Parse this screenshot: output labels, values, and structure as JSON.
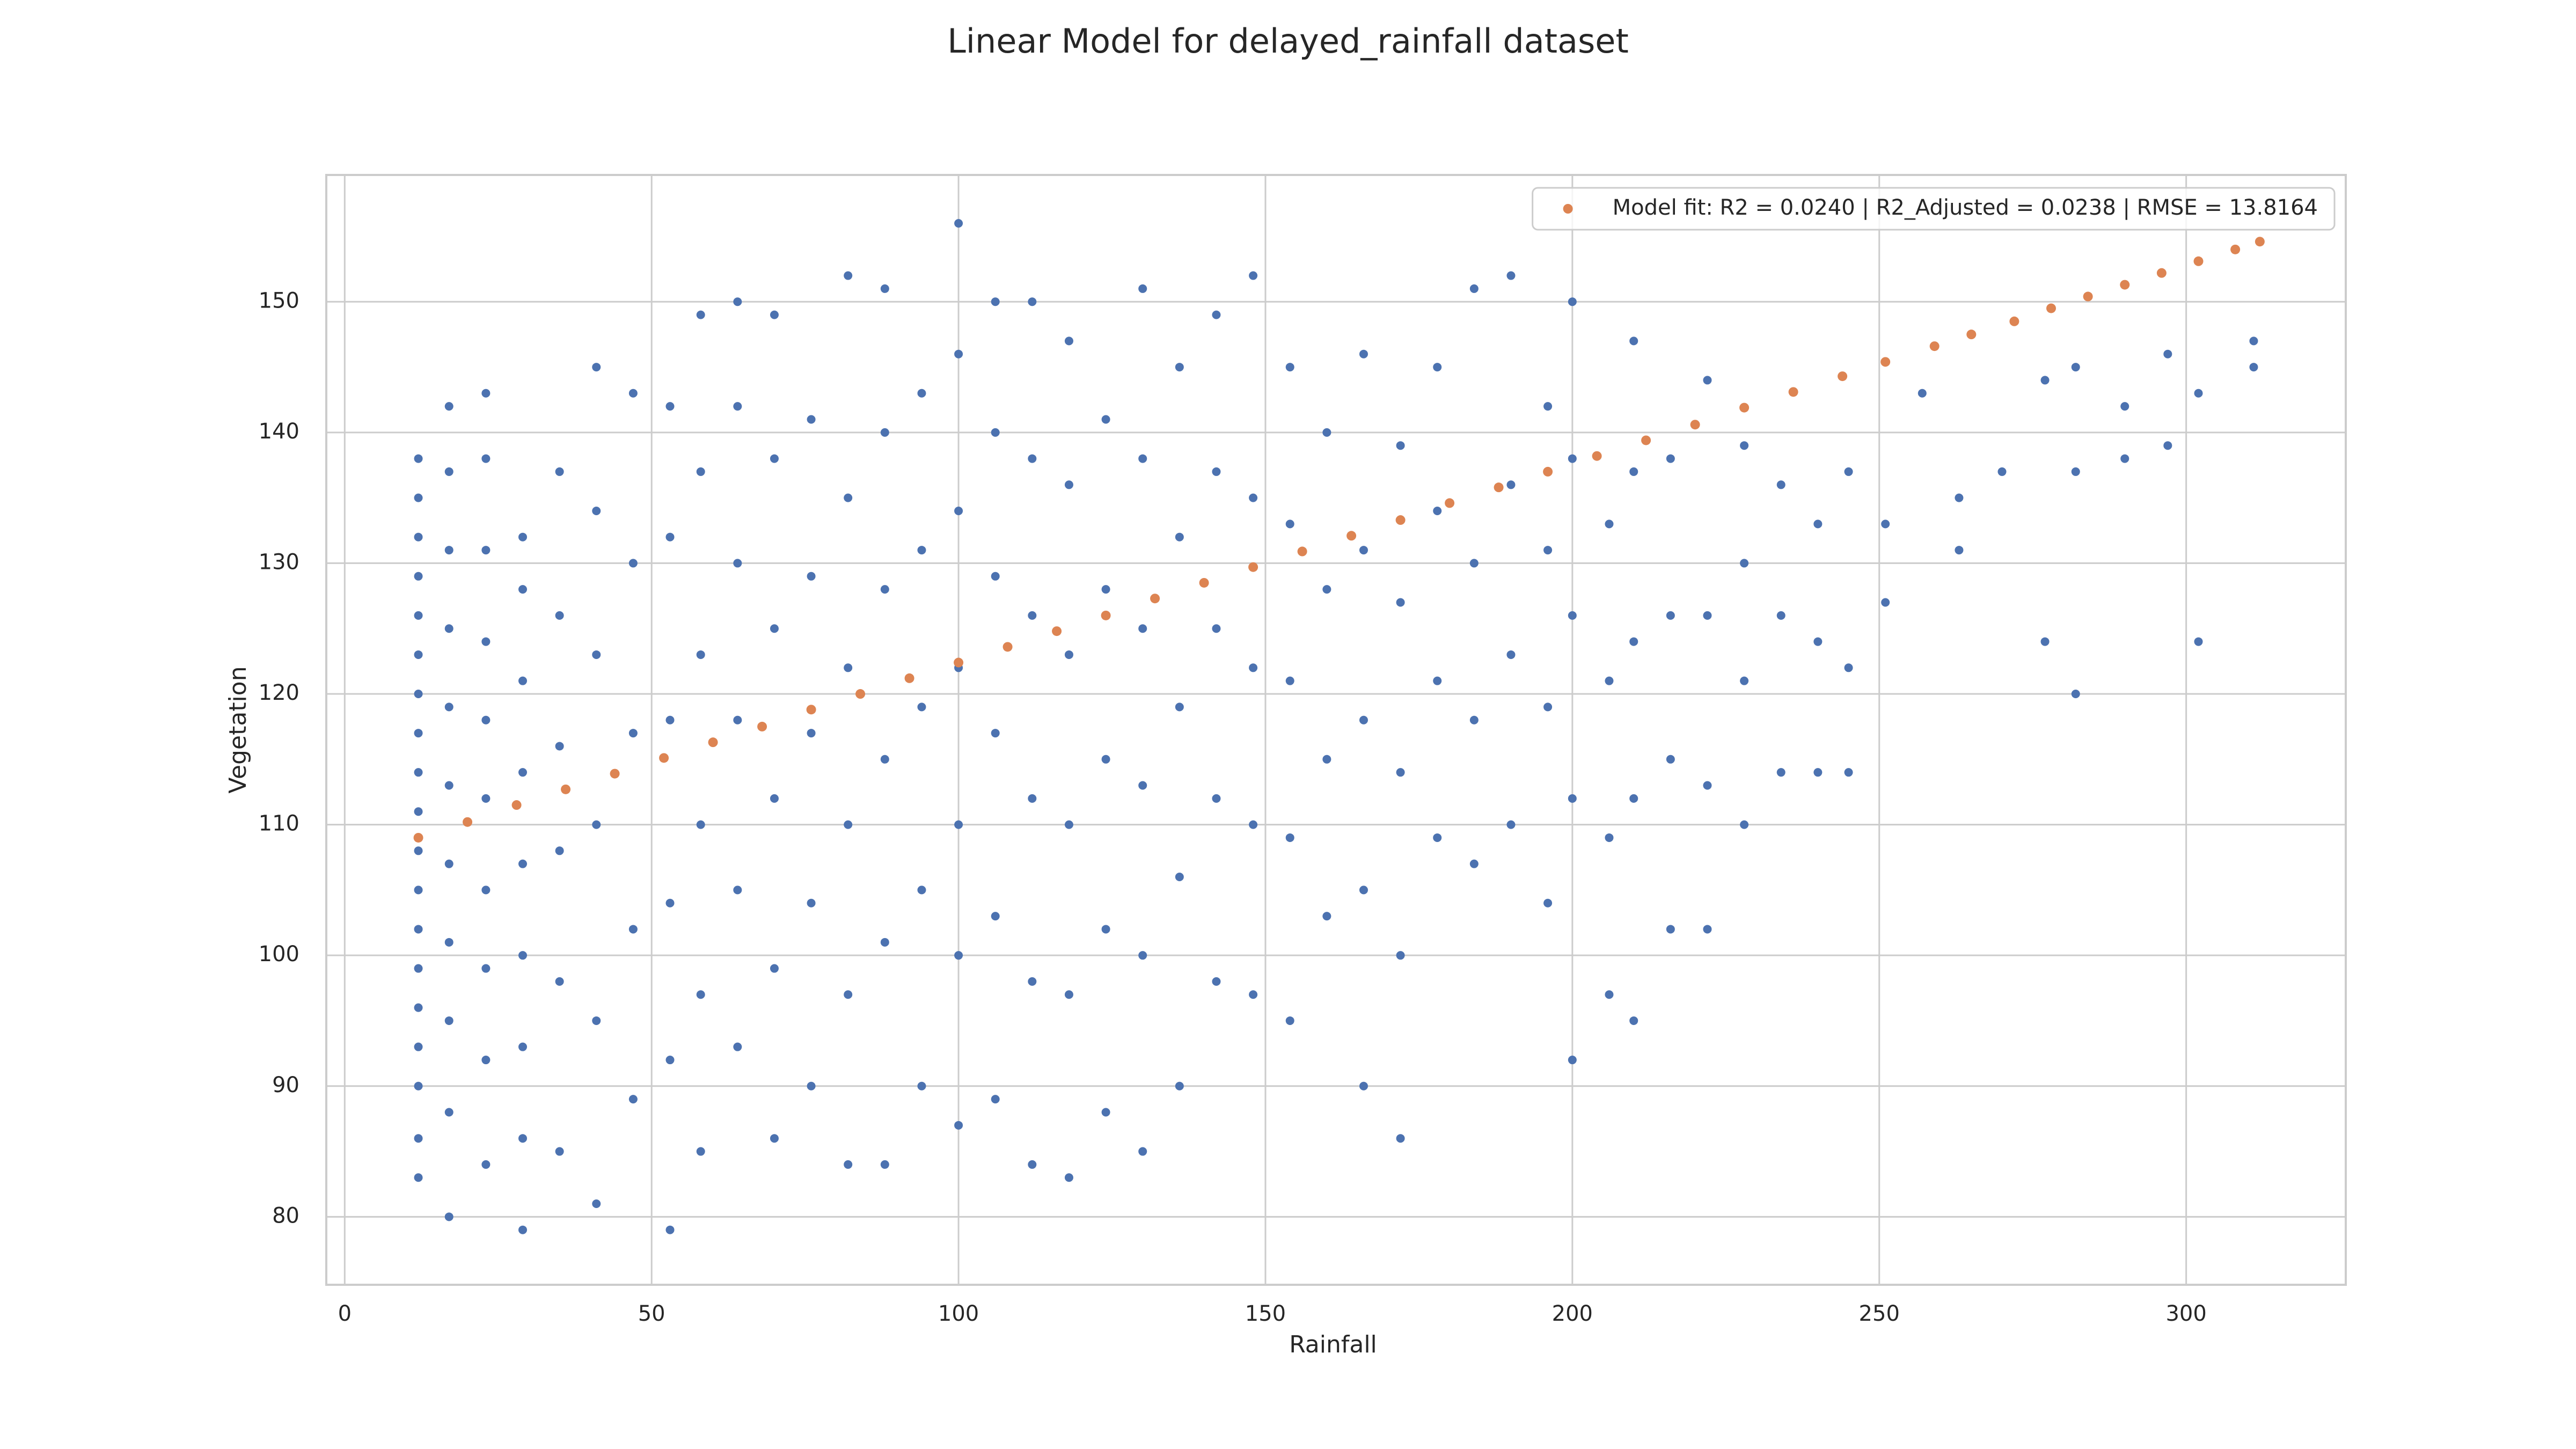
{
  "chart_data": {
    "type": "scatter",
    "title": "Linear Model for delayed_rainfall dataset",
    "x_label": "Rainfall",
    "y_label": "Vegetation",
    "xlim": [
      -3,
      326
    ],
    "ylim": [
      74.8,
      159.7
    ],
    "xticks": [
      0,
      50,
      100,
      150,
      200,
      250,
      300
    ],
    "yticks": [
      80,
      90,
      100,
      110,
      120,
      130,
      140,
      150
    ],
    "grid": true,
    "legend": "upper right",
    "series": [
      {
        "color": "#4c72b0",
        "x": [
          12,
          12,
          12,
          12,
          12,
          12,
          12,
          12,
          12,
          12,
          12,
          12,
          12,
          12,
          12,
          12,
          12,
          12,
          12,
          17,
          17,
          17,
          17,
          17,
          17,
          17,
          17,
          17,
          17,
          17,
          23,
          23,
          23,
          23,
          23,
          23,
          23,
          23,
          23,
          23,
          29,
          29,
          29,
          29,
          29,
          29,
          29,
          29,
          29,
          35,
          35,
          35,
          35,
          35,
          35,
          41,
          41,
          41,
          41,
          41,
          41,
          47,
          47,
          47,
          47,
          47,
          53,
          53,
          53,
          53,
          53,
          53,
          58,
          58,
          58,
          58,
          58,
          58,
          64,
          64,
          64,
          64,
          64,
          64,
          70,
          70,
          70,
          70,
          70,
          70,
          76,
          76,
          76,
          76,
          76,
          82,
          82,
          82,
          82,
          82,
          82,
          88,
          88,
          88,
          88,
          88,
          88,
          94,
          94,
          94,
          94,
          94,
          100,
          100,
          100,
          100,
          100,
          100,
          100,
          106,
          106,
          106,
          106,
          106,
          106,
          112,
          112,
          112,
          112,
          112,
          112,
          118,
          118,
          118,
          118,
          118,
          118,
          124,
          124,
          124,
          124,
          124,
          130,
          130,
          130,
          130,
          130,
          130,
          136,
          136,
          136,
          136,
          136,
          142,
          142,
          142,
          142,
          142,
          148,
          148,
          148,
          148,
          148,
          154,
          154,
          154,
          154,
          154,
          160,
          160,
          160,
          160,
          166,
          166,
          166,
          166,
          166,
          172,
          172,
          172,
          172,
          172,
          178,
          178,
          178,
          178,
          184,
          184,
          184,
          184,
          190,
          190,
          190,
          190,
          196,
          196,
          196,
          196,
          200,
          200,
          200,
          200,
          200,
          206,
          206,
          206,
          206,
          210,
          210,
          210,
          210,
          210,
          216,
          216,
          216,
          216,
          222,
          222,
          222,
          222,
          228,
          228,
          228,
          228,
          234,
          234,
          234,
          240,
          240,
          240,
          245,
          245,
          245,
          251,
          251,
          257,
          263,
          263,
          270,
          277,
          277,
          282,
          282,
          282,
          290,
          290,
          297,
          297,
          302,
          302,
          311,
          311
        ],
        "values": [
          83,
          86,
          90,
          93,
          96,
          99,
          102,
          105,
          108,
          111,
          114,
          117,
          120,
          123,
          126,
          129,
          132,
          135,
          138,
          80,
          88,
          95,
          101,
          107,
          113,
          119,
          125,
          131,
          137,
          142,
          84,
          92,
          99,
          105,
          112,
          118,
          124,
          131,
          138,
          143,
          79,
          86,
          93,
          100,
          107,
          114,
          121,
          128,
          132,
          85,
          98,
          108,
          116,
          126,
          137,
          81,
          95,
          110,
          123,
          134,
          145,
          89,
          102,
          117,
          130,
          143,
          79,
          92,
          104,
          118,
          132,
          142,
          85,
          97,
          110,
          123,
          137,
          149,
          93,
          105,
          118,
          130,
          142,
          150,
          86,
          99,
          112,
          125,
          138,
          149,
          90,
          104,
          117,
          129,
          141,
          84,
          97,
          110,
          122,
          135,
          152,
          84,
          101,
          115,
          128,
          140,
          151,
          90,
          105,
          119,
          131,
          143,
          87,
          100,
          110,
          122,
          134,
          146,
          156,
          89,
          103,
          117,
          129,
          140,
          150,
          84,
          98,
          112,
          126,
          138,
          150,
          83,
          97,
          110,
          123,
          136,
          147,
          88,
          102,
          115,
          128,
          141,
          85,
          100,
          113,
          125,
          138,
          151,
          90,
          106,
          119,
          132,
          145,
          98,
          112,
          125,
          137,
          149,
          97,
          110,
          122,
          135,
          152,
          95,
          109,
          121,
          133,
          145,
          103,
          115,
          128,
          140,
          90,
          105,
          118,
          131,
          146,
          86,
          100,
          114,
          127,
          139,
          109,
          121,
          134,
          145,
          107,
          118,
          130,
          151,
          110,
          123,
          136,
          152,
          104,
          119,
          131,
          142,
          92,
          112,
          126,
          138,
          150,
          97,
          109,
          121,
          133,
          95,
          112,
          124,
          137,
          147,
          102,
          115,
          126,
          138,
          102,
          113,
          126,
          144,
          110,
          121,
          130,
          139,
          114,
          126,
          136,
          114,
          124,
          133,
          114,
          122,
          137,
          127,
          133,
          143,
          131,
          135,
          137,
          124,
          144,
          120,
          137,
          145,
          138,
          142,
          139,
          146,
          124,
          143,
          145,
          147
        ]
      },
      {
        "name": "Model fit: R2 = 0.0240 | R2_Adjusted = 0.0238 | RMSE = 13.8164",
        "color": "#dd8452",
        "x": [
          12,
          20,
          28,
          36,
          44,
          52,
          60,
          68,
          76,
          84,
          92,
          100,
          108,
          116,
          124,
          132,
          140,
          148,
          156,
          164,
          172,
          180,
          188,
          196,
          204,
          212,
          220,
          228,
          236,
          244,
          251,
          259,
          265,
          272,
          278,
          284,
          290,
          296,
          302,
          308,
          312
        ],
        "values": [
          109.0,
          110.2,
          111.5,
          112.7,
          113.9,
          115.1,
          116.3,
          117.5,
          118.8,
          120.0,
          121.2,
          122.4,
          123.6,
          124.8,
          126.0,
          127.3,
          128.5,
          129.7,
          130.9,
          132.1,
          133.3,
          134.6,
          135.8,
          137.0,
          138.2,
          139.4,
          140.6,
          141.9,
          143.1,
          144.3,
          145.4,
          146.6,
          147.5,
          148.5,
          149.5,
          150.4,
          151.3,
          152.2,
          153.1,
          154.0,
          154.6
        ]
      }
    ]
  }
}
